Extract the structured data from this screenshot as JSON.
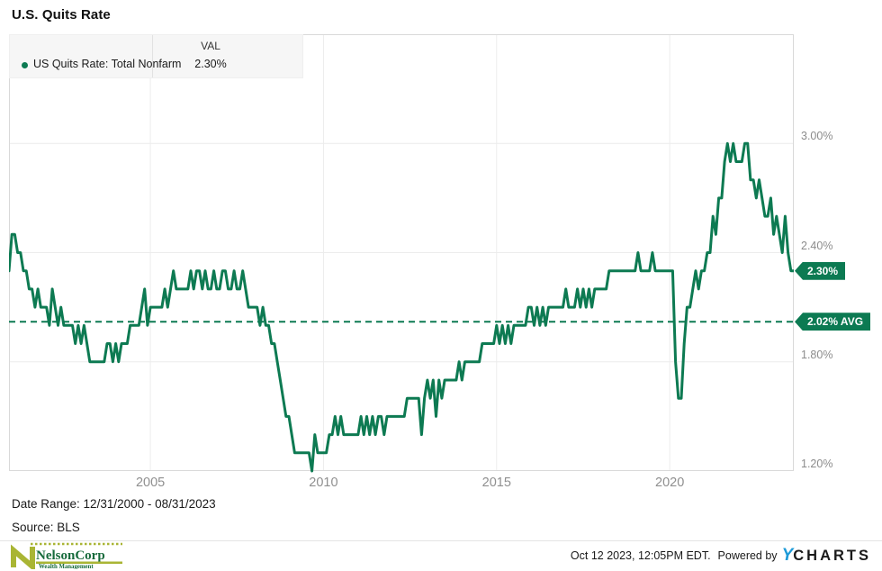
{
  "title": "U.S. Quits Rate",
  "legend": {
    "val_header": "VAL",
    "series_label": "US Quits Rate: Total Nonfarm",
    "series_value": "2.30%"
  },
  "y_axis_labels": [
    "3.00%",
    "2.40%",
    "1.80%",
    "1.20%"
  ],
  "badges": {
    "last": "2.30%",
    "avg": "2.02% AVG"
  },
  "footer": {
    "date_range": "Date Range: 12/31/2000 - 08/31/2023",
    "source": "Source: BLS"
  },
  "branding": {
    "logo_name": "NelsonCorp",
    "logo_sub": "Wealth Management",
    "timestamp": "Oct 12 2023, 12:05PM EDT.",
    "powered_by": "Powered by",
    "ycharts_y": "Y",
    "ycharts_rest": "CHARTS"
  },
  "colors": {
    "line": "#0d7a52",
    "badge": "#0c7a52",
    "avg_line": "#0d7a52",
    "legend_dot": "#0c7a52",
    "gridline": "#ececec",
    "plot_border": "#d9d9d9",
    "axis_label": "#8f8f8f",
    "ycharts_blue": "#1f9bd8",
    "logo_chartreuse": "#a9b534",
    "logo_green": "#176b3c"
  },
  "chart_data": {
    "type": "line",
    "title": "U.S. Quits Rate",
    "series_name": "US Quits Rate: Total Nonfarm",
    "unit": "%",
    "frequency": "monthly",
    "start_date": "12/31/2000",
    "end_date": "08/31/2023",
    "ylim": [
      1.2,
      3.6
    ],
    "y_gridlines": [
      3.0,
      2.4,
      1.8
    ],
    "y_ticks": [
      3.0,
      2.4,
      1.8,
      1.2
    ],
    "x_ticks": [
      {
        "label": "2005",
        "month_index": 49
      },
      {
        "label": "2010",
        "month_index": 109
      },
      {
        "label": "2015",
        "month_index": 169
      },
      {
        "label": "2020",
        "month_index": 229
      }
    ],
    "avg_value": 2.02,
    "last_value": 2.3,
    "legend_position": "top-left",
    "grid": true,
    "values": [
      2.3,
      2.5,
      2.5,
      2.4,
      2.4,
      2.3,
      2.3,
      2.2,
      2.2,
      2.1,
      2.2,
      2.1,
      2.1,
      2.1,
      2.0,
      2.2,
      2.1,
      2.0,
      2.1,
      2.0,
      2.0,
      2.0,
      2.0,
      1.9,
      2.0,
      1.9,
      2.0,
      1.9,
      1.8,
      1.8,
      1.8,
      1.8,
      1.8,
      1.8,
      1.9,
      1.9,
      1.8,
      1.9,
      1.8,
      1.9,
      1.9,
      1.9,
      2.0,
      2.0,
      2.0,
      2.0,
      2.1,
      2.2,
      2.0,
      2.1,
      2.1,
      2.1,
      2.1,
      2.1,
      2.2,
      2.1,
      2.2,
      2.3,
      2.2,
      2.2,
      2.2,
      2.2,
      2.2,
      2.3,
      2.2,
      2.3,
      2.3,
      2.2,
      2.3,
      2.2,
      2.2,
      2.3,
      2.2,
      2.2,
      2.3,
      2.3,
      2.2,
      2.2,
      2.3,
      2.2,
      2.2,
      2.3,
      2.2,
      2.1,
      2.1,
      2.1,
      2.1,
      2.0,
      2.1,
      2.0,
      2.0,
      1.9,
      1.9,
      1.8,
      1.7,
      1.6,
      1.5,
      1.5,
      1.4,
      1.3,
      1.3,
      1.3,
      1.3,
      1.3,
      1.3,
      1.2,
      1.4,
      1.3,
      1.3,
      1.3,
      1.3,
      1.4,
      1.4,
      1.5,
      1.4,
      1.5,
      1.4,
      1.4,
      1.4,
      1.4,
      1.4,
      1.4,
      1.5,
      1.4,
      1.5,
      1.4,
      1.5,
      1.4,
      1.5,
      1.5,
      1.4,
      1.5,
      1.5,
      1.5,
      1.5,
      1.5,
      1.5,
      1.5,
      1.6,
      1.6,
      1.6,
      1.6,
      1.6,
      1.4,
      1.6,
      1.7,
      1.6,
      1.7,
      1.5,
      1.7,
      1.6,
      1.7,
      1.7,
      1.7,
      1.7,
      1.7,
      1.8,
      1.7,
      1.8,
      1.8,
      1.8,
      1.8,
      1.8,
      1.8,
      1.9,
      1.9,
      1.9,
      1.9,
      1.9,
      2.0,
      1.9,
      2.0,
      1.9,
      2.0,
      1.9,
      2.0,
      2.0,
      2.0,
      2.0,
      2.0,
      2.1,
      2.1,
      2.0,
      2.1,
      2.0,
      2.1,
      2.0,
      2.1,
      2.1,
      2.1,
      2.1,
      2.1,
      2.1,
      2.2,
      2.1,
      2.1,
      2.1,
      2.2,
      2.1,
      2.2,
      2.1,
      2.2,
      2.1,
      2.2,
      2.2,
      2.2,
      2.2,
      2.2,
      2.3,
      2.3,
      2.3,
      2.3,
      2.3,
      2.3,
      2.3,
      2.3,
      2.3,
      2.3,
      2.4,
      2.3,
      2.3,
      2.3,
      2.3,
      2.4,
      2.3,
      2.3,
      2.3,
      2.3,
      2.3,
      2.3,
      2.3,
      1.8,
      1.6,
      1.6,
      1.9,
      2.1,
      2.1,
      2.2,
      2.3,
      2.2,
      2.3,
      2.3,
      2.4,
      2.4,
      2.6,
      2.5,
      2.7,
      2.7,
      2.9,
      3.0,
      2.9,
      3.0,
      2.9,
      2.9,
      2.9,
      3.0,
      3.0,
      2.8,
      2.8,
      2.7,
      2.8,
      2.7,
      2.6,
      2.6,
      2.7,
      2.5,
      2.6,
      2.5,
      2.4,
      2.6,
      2.4,
      2.3,
      2.3
    ]
  }
}
